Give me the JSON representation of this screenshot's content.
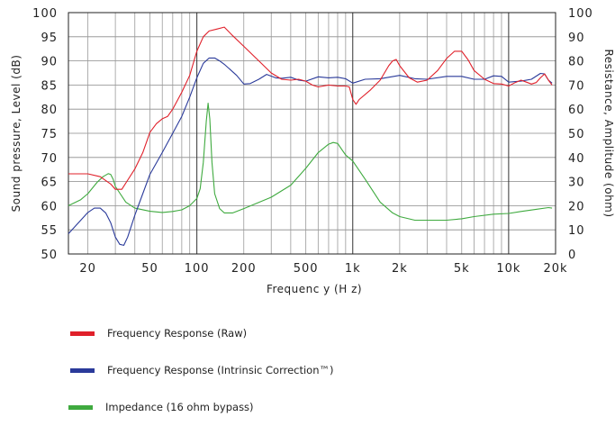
{
  "chart_data": {
    "type": "line",
    "xlabel": "Frequenc y   (H z)",
    "ylabel_left": "Sound pressure, Level  (dB)",
    "ylabel_right": "Resistance, Amplitude  (ohm)",
    "x_scale": "log",
    "xlim": [
      15,
      20000
    ],
    "ylim_left": [
      50,
      100
    ],
    "ylim_right": [
      0,
      100
    ],
    "grid": true,
    "x_ticks": [
      {
        "value": 20,
        "label": "20"
      },
      {
        "value": 50,
        "label": "50"
      },
      {
        "value": 100,
        "label": "100"
      },
      {
        "value": 200,
        "label": "200"
      },
      {
        "value": 500,
        "label": "500"
      },
      {
        "value": 1000,
        "label": "1k"
      },
      {
        "value": 2000,
        "label": "2k"
      },
      {
        "value": 5000,
        "label": "5k"
      },
      {
        "value": 10000,
        "label": "10k"
      },
      {
        "value": 20000,
        "label": "20k"
      }
    ],
    "y_ticks_left": [
      "50",
      "55",
      "60",
      "65",
      "70",
      "75",
      "80",
      "85",
      "90",
      "95",
      "100"
    ],
    "y_ticks_right": [
      "0",
      "10",
      "20",
      "30",
      "40",
      "50",
      "60",
      "70",
      "80",
      "90",
      "100"
    ],
    "series": [
      {
        "name": "Frequency Response (Raw)",
        "axis": "left",
        "color": "#e0202a",
        "points": [
          [
            15,
            66.6
          ],
          [
            20,
            66.6
          ],
          [
            24,
            66
          ],
          [
            28,
            64.5
          ],
          [
            30,
            63.4
          ],
          [
            33,
            63.4
          ],
          [
            36,
            65.3
          ],
          [
            40,
            67.6
          ],
          [
            45,
            71
          ],
          [
            50,
            75.2
          ],
          [
            55,
            77
          ],
          [
            60,
            78
          ],
          [
            65,
            78.5
          ],
          [
            70,
            80
          ],
          [
            80,
            83.5
          ],
          [
            90,
            87
          ],
          [
            100,
            92
          ],
          [
            110,
            95
          ],
          [
            120,
            96.2
          ],
          [
            135,
            96.6
          ],
          [
            150,
            97
          ],
          [
            170,
            95.2
          ],
          [
            200,
            93
          ],
          [
            250,
            90
          ],
          [
            300,
            87.5
          ],
          [
            350,
            86.2
          ],
          [
            400,
            86
          ],
          [
            450,
            86.2
          ],
          [
            500,
            85.8
          ],
          [
            550,
            85
          ],
          [
            600,
            84.6
          ],
          [
            700,
            85
          ],
          [
            800,
            84.8
          ],
          [
            900,
            84.8
          ],
          [
            950,
            84.6
          ],
          [
            1000,
            82
          ],
          [
            1050,
            81
          ],
          [
            1100,
            82
          ],
          [
            1300,
            84
          ],
          [
            1500,
            86
          ],
          [
            1700,
            89
          ],
          [
            1800,
            90
          ],
          [
            1900,
            90.3
          ],
          [
            2000,
            89
          ],
          [
            2300,
            86.5
          ],
          [
            2600,
            85.6
          ],
          [
            3000,
            86
          ],
          [
            3500,
            88
          ],
          [
            4000,
            90.5
          ],
          [
            4500,
            92
          ],
          [
            5000,
            92
          ],
          [
            5500,
            90.2
          ],
          [
            6000,
            88
          ],
          [
            7000,
            86.2
          ],
          [
            8000,
            85.3
          ],
          [
            9000,
            85.2
          ],
          [
            10000,
            84.8
          ],
          [
            11000,
            85.5
          ],
          [
            12000,
            86
          ],
          [
            13000,
            85.6
          ],
          [
            14000,
            85.2
          ],
          [
            15000,
            85.5
          ],
          [
            16000,
            86.5
          ],
          [
            17000,
            87.3
          ],
          [
            18000,
            86
          ],
          [
            19000,
            85
          ]
        ]
      },
      {
        "name": "Frequency Response (Intrinsic Correction™)",
        "axis": "left",
        "color": "#2a3a9a",
        "points": [
          [
            15,
            54.2
          ],
          [
            18,
            57
          ],
          [
            20,
            58.6
          ],
          [
            22,
            59.5
          ],
          [
            24,
            59.5
          ],
          [
            26,
            58.5
          ],
          [
            28,
            56.5
          ],
          [
            30,
            53.5
          ],
          [
            32,
            52
          ],
          [
            34,
            51.8
          ],
          [
            36,
            53.5
          ],
          [
            40,
            58
          ],
          [
            45,
            62.5
          ],
          [
            50,
            66.5
          ],
          [
            60,
            71
          ],
          [
            70,
            75
          ],
          [
            80,
            78.5
          ],
          [
            90,
            82.5
          ],
          [
            100,
            86.5
          ],
          [
            110,
            89.5
          ],
          [
            120,
            90.6
          ],
          [
            130,
            90.6
          ],
          [
            140,
            90
          ],
          [
            150,
            89.3
          ],
          [
            180,
            87
          ],
          [
            200,
            85.2
          ],
          [
            220,
            85.3
          ],
          [
            250,
            86.2
          ],
          [
            280,
            87.2
          ],
          [
            320,
            86.5
          ],
          [
            350,
            86.4
          ],
          [
            400,
            86.6
          ],
          [
            450,
            86
          ],
          [
            500,
            85.8
          ],
          [
            600,
            86.7
          ],
          [
            700,
            86.5
          ],
          [
            800,
            86.6
          ],
          [
            900,
            86.3
          ],
          [
            1000,
            85.4
          ],
          [
            1200,
            86.2
          ],
          [
            1500,
            86.3
          ],
          [
            2000,
            87
          ],
          [
            2500,
            86.3
          ],
          [
            3000,
            86.2
          ],
          [
            4000,
            86.8
          ],
          [
            5000,
            86.8
          ],
          [
            6000,
            86.2
          ],
          [
            7000,
            86.2
          ],
          [
            8000,
            86.9
          ],
          [
            9000,
            86.8
          ],
          [
            10000,
            85.6
          ],
          [
            12000,
            85.8
          ],
          [
            14000,
            86.2
          ],
          [
            16000,
            87.4
          ],
          [
            17000,
            87.3
          ],
          [
            18000,
            86
          ],
          [
            19000,
            85.4
          ]
        ]
      },
      {
        "name": "Impedance (16 ohm bypass)",
        "axis": "right",
        "color": "#3faa3f",
        "points": [
          [
            15,
            20
          ],
          [
            18,
            22.5
          ],
          [
            20,
            25
          ],
          [
            23,
            29.8
          ],
          [
            25,
            32
          ],
          [
            27,
            33.3
          ],
          [
            28,
            33
          ],
          [
            29,
            31
          ],
          [
            30,
            28
          ],
          [
            35,
            21.5
          ],
          [
            40,
            19
          ],
          [
            50,
            17.7
          ],
          [
            60,
            17.2
          ],
          [
            70,
            17.6
          ],
          [
            80,
            18.3
          ],
          [
            90,
            20
          ],
          [
            100,
            23
          ],
          [
            105,
            27
          ],
          [
            110,
            38
          ],
          [
            115,
            55
          ],
          [
            118,
            62.5
          ],
          [
            121,
            56
          ],
          [
            125,
            38
          ],
          [
            130,
            25
          ],
          [
            140,
            18.8
          ],
          [
            150,
            17
          ],
          [
            170,
            17
          ],
          [
            200,
            18.8
          ],
          [
            300,
            23.5
          ],
          [
            400,
            28.5
          ],
          [
            500,
            35.5
          ],
          [
            600,
            42
          ],
          [
            700,
            45.5
          ],
          [
            750,
            46.2
          ],
          [
            800,
            45.8
          ],
          [
            900,
            41
          ],
          [
            1000,
            38.5
          ],
          [
            1200,
            31
          ],
          [
            1500,
            21.5
          ],
          [
            1800,
            17
          ],
          [
            2000,
            15.5
          ],
          [
            2500,
            14
          ],
          [
            3000,
            14
          ],
          [
            4000,
            14
          ],
          [
            5000,
            14.6
          ],
          [
            6000,
            15.5
          ],
          [
            8000,
            16.5
          ],
          [
            10000,
            16.8
          ],
          [
            12000,
            17.6
          ],
          [
            15000,
            18.5
          ],
          [
            18000,
            19.2
          ],
          [
            19000,
            19
          ]
        ]
      }
    ],
    "legend": [
      {
        "label": "Frequency Response (Raw)",
        "color": "#e0202a"
      },
      {
        "label": "Frequency Response (Intrinsic Correction™)",
        "color": "#2a3a9a"
      },
      {
        "label": "Impedance (16 ohm bypass)",
        "color": "#3faa3f"
      }
    ]
  }
}
